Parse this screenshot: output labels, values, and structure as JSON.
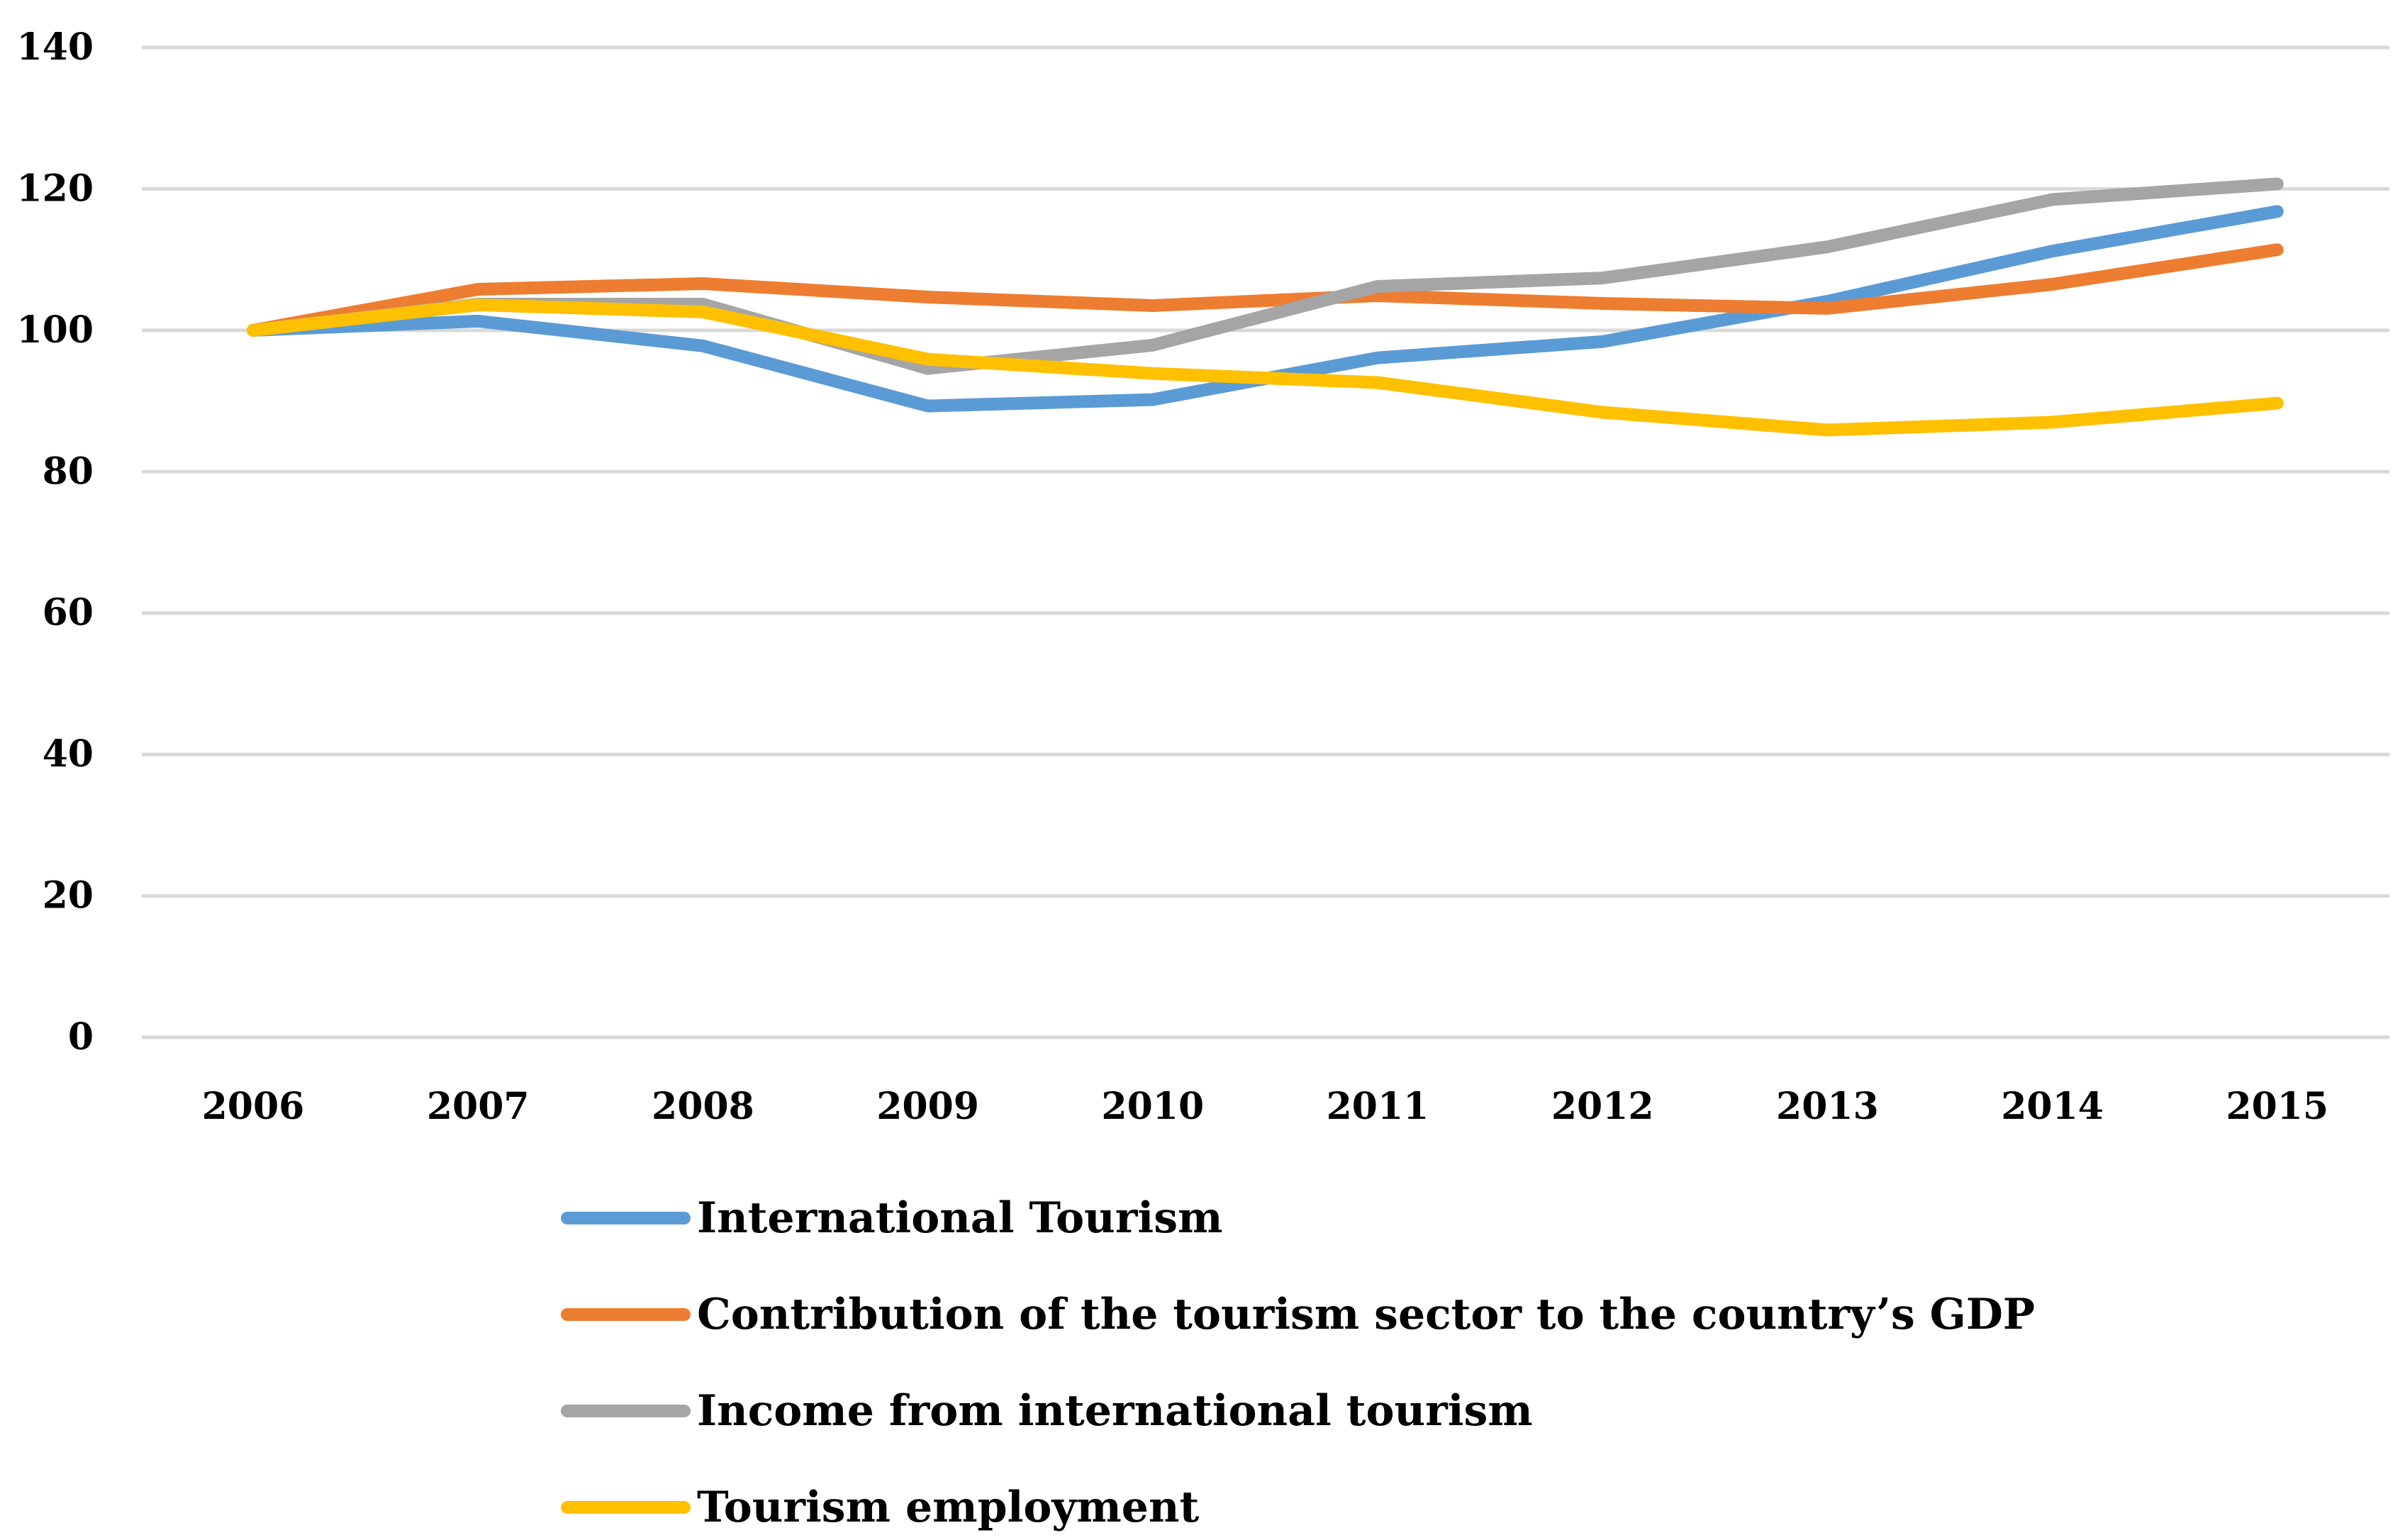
{
  "chart_data": {
    "type": "line",
    "title": "",
    "xlabel": "",
    "ylabel": "",
    "categories": [
      "2006",
      "2007",
      "2008",
      "2009",
      "2010",
      "2011",
      "2012",
      "2013",
      "2014",
      "2015"
    ],
    "ylim": [
      0,
      140
    ],
    "yticks": [
      0,
      20,
      40,
      60,
      80,
      100,
      120,
      140
    ],
    "grid": true,
    "legend_position": "bottom",
    "series": [
      {
        "name": "International Tourism",
        "color": "#5b9bd5",
        "values": [
          100,
          101.3,
          97.8,
          89.3,
          90.2,
          96.1,
          98.4,
          104.1,
          111.2,
          116.8
        ]
      },
      {
        "name": "Contribution of the tourism sector to the country’s GDP",
        "color": "#ed7d31",
        "values": [
          100,
          105.8,
          106.6,
          104.7,
          103.5,
          104.9,
          103.8,
          103.1,
          106.5,
          111.4
        ]
      },
      {
        "name": "Income from international tourism",
        "color": "#a5a5a5",
        "values": [
          100,
          103.7,
          103.7,
          94.6,
          97.9,
          106.2,
          107.4,
          111.8,
          118.5,
          120.7
        ]
      },
      {
        "name": "Tourism employment",
        "color": "#ffc000",
        "values": [
          100,
          103.6,
          102.6,
          95.9,
          93.9,
          92.6,
          88.4,
          85.9,
          87.0,
          89.7
        ]
      }
    ]
  }
}
